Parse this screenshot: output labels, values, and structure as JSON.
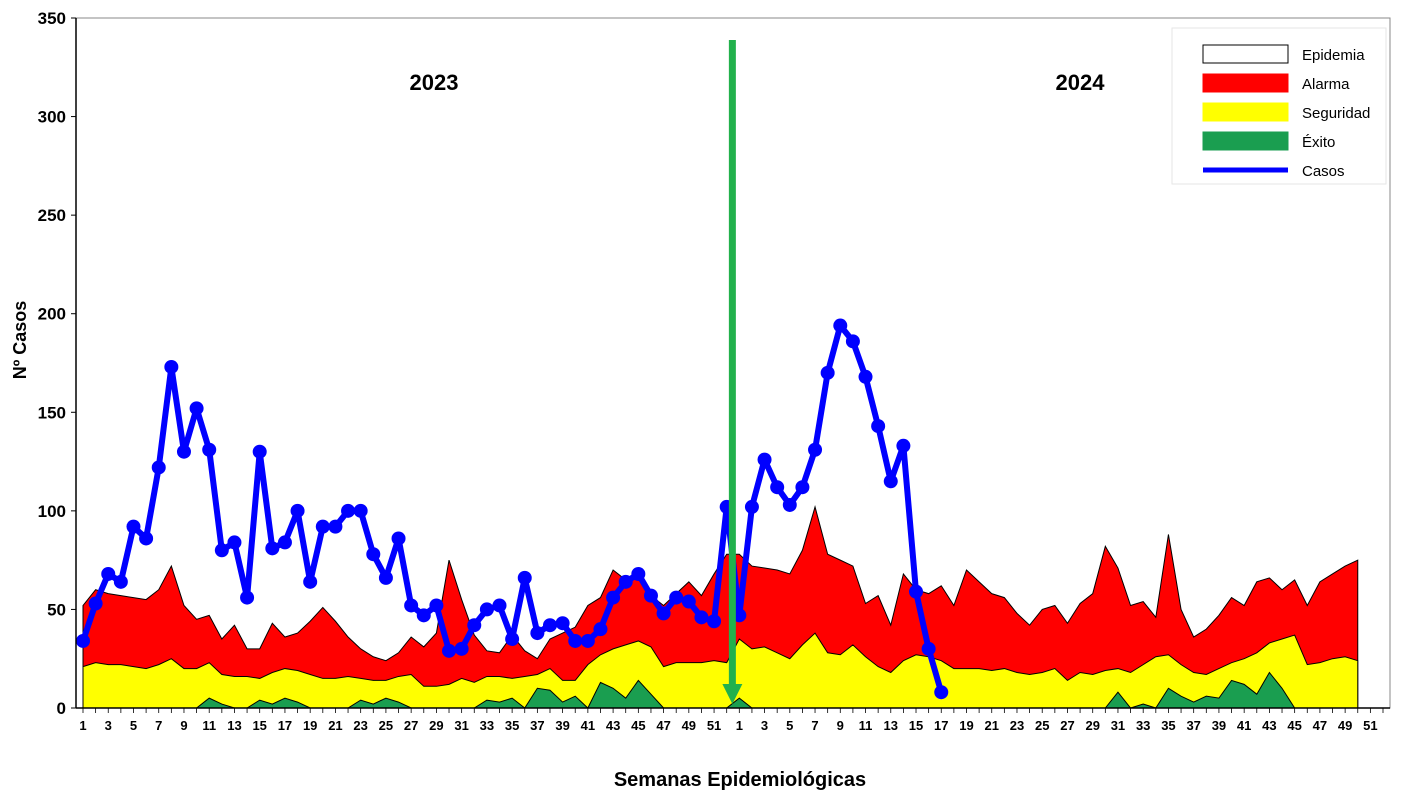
{
  "chart_data": {
    "type": "area",
    "ylabel": "Nº Casos",
    "xlabel": "Semanas Epidemiológicas",
    "ylim": [
      0,
      350
    ],
    "yticks": [
      0,
      50,
      100,
      150,
      200,
      250,
      300,
      350
    ],
    "grid": false,
    "legend_position": "top-right",
    "year_labels": [
      "2023",
      "2024"
    ],
    "divider": {
      "after_week_index": 51,
      "label_between": [
        "2023",
        "2024"
      ]
    },
    "x_tick_labels_2023": [
      "1",
      "3",
      "5",
      "7",
      "9",
      "11",
      "13",
      "15",
      "17",
      "19",
      "21",
      "23",
      "25",
      "27",
      "29",
      "31",
      "33",
      "35",
      "37",
      "39",
      "41",
      "43",
      "45",
      "47",
      "49",
      "51"
    ],
    "x_tick_labels_2024": [
      "1",
      "3",
      "5",
      "7",
      "9",
      "11",
      "13",
      "15",
      "17",
      "19",
      "21",
      "23",
      "25",
      "27",
      "29",
      "31",
      "33",
      "35",
      "37",
      "39",
      "41",
      "43",
      "45",
      "47",
      "49",
      "51"
    ],
    "weeks_per_year": 52,
    "legend": [
      {
        "name": "Epidemia",
        "color": "#ffffff"
      },
      {
        "name": "Alarma",
        "color": "#ff0000"
      },
      {
        "name": "Seguridad",
        "color": "#ffff00"
      },
      {
        "name": "Éxito",
        "color": "#1a9e50"
      },
      {
        "name": "Casos",
        "color": "#0000ff"
      }
    ],
    "series": [
      {
        "name": "Alarma",
        "values": [
          52,
          60,
          58,
          57,
          56,
          55,
          60,
          72,
          52,
          45,
          47,
          35,
          42,
          30,
          30,
          43,
          36,
          38,
          44,
          51,
          44,
          36,
          30,
          26,
          24,
          28,
          36,
          31,
          38,
          75,
          55,
          37,
          29,
          28,
          37,
          29,
          25,
          35,
          38,
          41,
          52,
          56,
          70,
          65,
          68,
          57,
          52,
          58,
          64,
          57,
          68,
          78,
          78,
          72,
          71,
          70,
          68,
          80,
          102,
          78,
          75,
          72,
          53,
          57,
          42,
          68,
          60,
          58,
          62,
          52,
          70,
          64,
          58,
          56,
          48,
          42,
          50,
          52,
          43,
          53,
          58,
          82,
          71,
          52,
          54,
          46,
          88,
          50,
          36,
          40,
          47,
          56,
          52,
          64,
          66,
          60,
          65,
          52,
          64,
          68,
          72,
          75
        ]
      },
      {
        "name": "Seguridad",
        "values": [
          21,
          23,
          22,
          22,
          21,
          20,
          22,
          25,
          20,
          20,
          23,
          17,
          16,
          16,
          15,
          18,
          20,
          19,
          17,
          15,
          15,
          16,
          15,
          14,
          14,
          16,
          17,
          11,
          11,
          12,
          15,
          13,
          16,
          16,
          15,
          16,
          17,
          20,
          14,
          14,
          22,
          27,
          30,
          32,
          34,
          31,
          21,
          23,
          23,
          23,
          24,
          23,
          35,
          30,
          31,
          28,
          25,
          32,
          38,
          28,
          27,
          32,
          26,
          21,
          18,
          24,
          27,
          26,
          24,
          20,
          20,
          20,
          19,
          20,
          18,
          17,
          18,
          20,
          14,
          18,
          17,
          19,
          20,
          18,
          22,
          26,
          27,
          22,
          18,
          17,
          20,
          23,
          25,
          28,
          33,
          35,
          37,
          22,
          23,
          25,
          26,
          24
        ]
      },
      {
        "name": "Éxito",
        "values": [
          0,
          0,
          0,
          0,
          0,
          0,
          0,
          0,
          0,
          0,
          5,
          2,
          0,
          0,
          4,
          2,
          5,
          3,
          0,
          0,
          0,
          0,
          4,
          2,
          5,
          3,
          0,
          0,
          0,
          0,
          0,
          0,
          4,
          3,
          5,
          0,
          10,
          9,
          3,
          6,
          0,
          13,
          10,
          5,
          14,
          7,
          0,
          0,
          0,
          0,
          0,
          0,
          5,
          0,
          0,
          0,
          0,
          0,
          0,
          0,
          0,
          0,
          0,
          0,
          0,
          0,
          0,
          0,
          0,
          0,
          0,
          0,
          0,
          0,
          0,
          0,
          0,
          0,
          0,
          0,
          0,
          0,
          8,
          0,
          2,
          0,
          10,
          6,
          3,
          6,
          5,
          14,
          12,
          7,
          18,
          10,
          0,
          0,
          0,
          0,
          0,
          0
        ]
      },
      {
        "name": "Casos",
        "values": [
          34,
          53,
          68,
          64,
          92,
          86,
          122,
          173,
          130,
          152,
          131,
          80,
          84,
          56,
          130,
          81,
          84,
          100,
          64,
          92,
          92,
          100,
          100,
          78,
          66,
          86,
          52,
          47,
          52,
          29,
          30,
          42,
          50,
          52,
          35,
          66,
          38,
          42,
          43,
          34,
          34,
          40,
          56,
          64,
          68,
          57,
          48,
          56,
          54,
          46,
          44,
          102,
          47,
          102,
          126,
          112,
          103,
          112,
          131,
          170,
          194,
          186,
          168,
          143,
          115,
          133,
          59,
          30,
          8
        ]
      }
    ]
  }
}
